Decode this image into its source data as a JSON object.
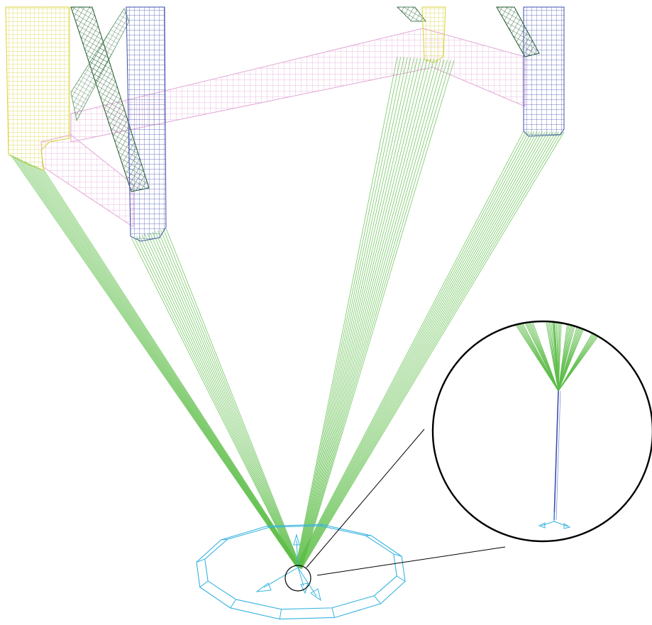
{
  "figure": {
    "description_labels": [],
    "colors": {
      "background": "#ffffff",
      "leg_yellow": "#d8d23a",
      "leg_blue": "#3f4fb0",
      "brace_dark_green": "#1f5a2c",
      "beam_pink": "#e2a7d6",
      "cable_green": "#5cbd47",
      "base_cyan": "#37b3df",
      "detail_outline": "#000000",
      "leader_line": "#000000"
    },
    "icons": {
      "zoom_detail": "magnifier-circle-icon",
      "anchor_axes": "triad-axes-icon"
    }
  }
}
